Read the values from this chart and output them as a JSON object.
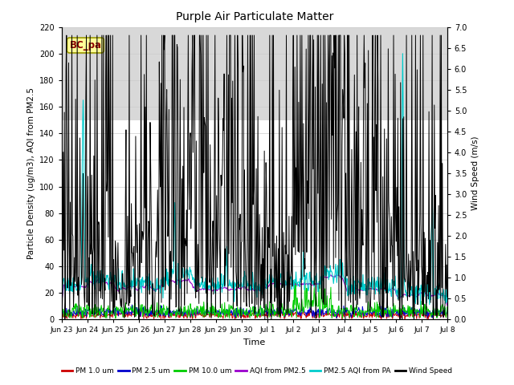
{
  "title": "Purple Air Particulate Matter",
  "xlabel": "Time",
  "ylabel_left": "Particle Density (ug/m3), AQI from PM2.5",
  "ylabel_right": "Wind Speed (m/s)",
  "annotation_text": "BC_pa",
  "annotation_color": "#8B0000",
  "annotation_bg": "#FFFF99",
  "annotation_edge": "#999900",
  "ylim_left": [
    0,
    220
  ],
  "ylim_right": [
    0,
    7.0
  ],
  "yticks_left": [
    0,
    20,
    40,
    60,
    80,
    100,
    120,
    140,
    160,
    180,
    200,
    220
  ],
  "yticks_right": [
    0.0,
    0.5,
    1.0,
    1.5,
    2.0,
    2.5,
    3.0,
    3.5,
    4.0,
    4.5,
    5.0,
    5.5,
    6.0,
    6.5,
    7.0
  ],
  "xtick_labels": [
    "Jun 23",
    "Jun 24",
    "Jun 25",
    "Jun 26",
    "Jun 27",
    "Jun 28",
    "Jun 29",
    "Jun 30",
    "Jul 1",
    "Jul 2",
    "Jul 3",
    "Jul 4",
    "Jul 5",
    "Jul 6",
    "Jul 7",
    "Jul 8"
  ],
  "grid_color": "#cccccc",
  "shaded_region": [
    150,
    220
  ],
  "shaded_color": "#d8d8d8",
  "colors": {
    "pm1": "#cc0000",
    "pm25": "#0000cc",
    "pm10": "#00cc00",
    "aqi_pm25": "#9900cc",
    "aqi_pa": "#00cccc",
    "wind": "#000000"
  },
  "legend_labels": [
    "PM 1.0 um",
    "PM 2.5 um",
    "PM 10.0 um",
    "AQI from PM2.5",
    "PM2.5 AQI from PA",
    "Wind Speed"
  ]
}
